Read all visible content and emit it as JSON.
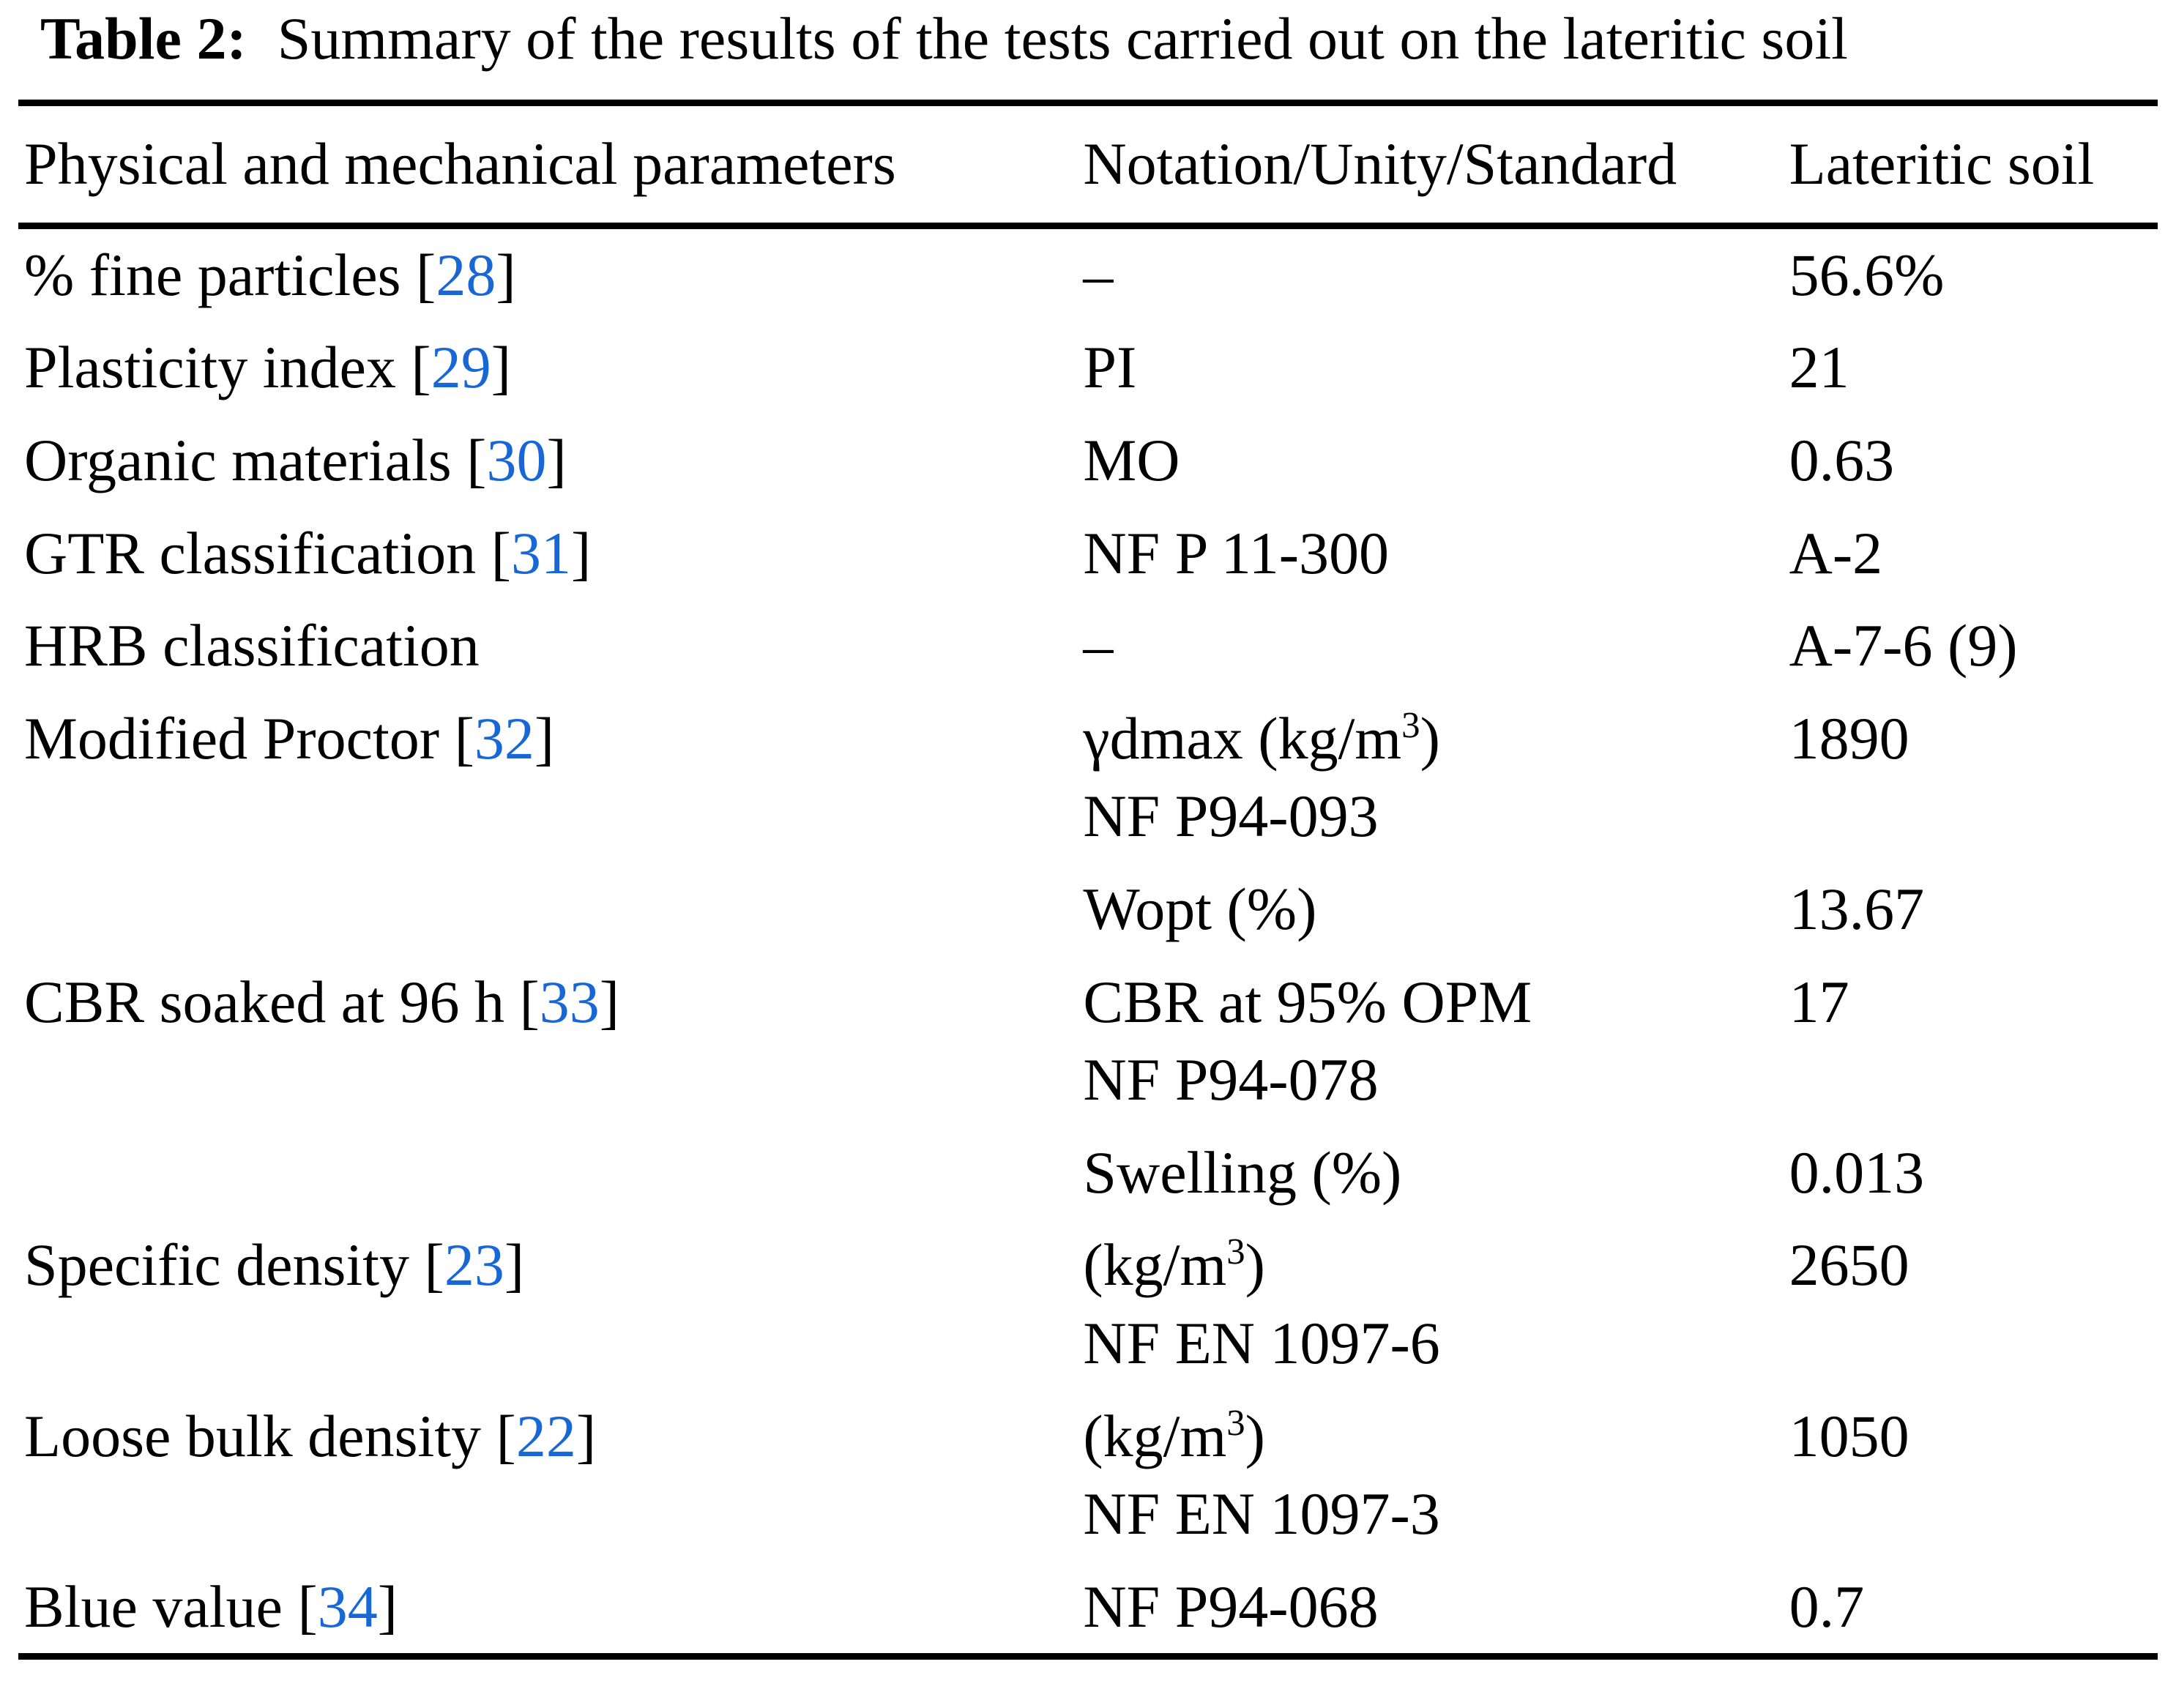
{
  "title": {
    "label": "Table 2:",
    "text": "Summary of the results of the tests carried out on the lateritic soil"
  },
  "table": {
    "columns": [
      "Physical and mechanical parameters",
      "Notation/Unity/Standard",
      "Lateritic soil"
    ],
    "rows": [
      {
        "parameter": "% fine particles",
        "ref": "28",
        "notation_lines": [
          "–"
        ],
        "value": "56.6%"
      },
      {
        "parameter": "Plasticity index",
        "ref": "29",
        "notation_lines": [
          "PI"
        ],
        "value": "21"
      },
      {
        "parameter": "Organic materials",
        "ref": "30",
        "notation_lines": [
          "MO"
        ],
        "value": "0.63"
      },
      {
        "parameter": "GTR classification",
        "ref": "31",
        "notation_lines": [
          "NF P 11-300"
        ],
        "value": "A-2"
      },
      {
        "parameter": "HRB classification",
        "ref": null,
        "notation_lines": [
          "–"
        ],
        "value": "A-7-6 (9)"
      },
      {
        "parameter": "Modified Proctor",
        "ref": "32",
        "notation_lines": [
          "γdmax (kg/m^3)",
          "NF P94-093"
        ],
        "value": "1890"
      },
      {
        "parameter": "",
        "ref": null,
        "notation_lines": [
          "Wopt (%)"
        ],
        "value": "13.67"
      },
      {
        "parameter": "CBR soaked at 96 h",
        "ref": "33",
        "notation_lines": [
          "CBR at 95% OPM",
          "NF P94-078"
        ],
        "value": "17"
      },
      {
        "parameter": "",
        "ref": null,
        "notation_lines": [
          "Swelling (%)"
        ],
        "value": "0.013"
      },
      {
        "parameter": "Specific density",
        "ref": "23",
        "notation_lines": [
          "(kg/m^3)",
          "NF EN 1097-6"
        ],
        "value": "2650"
      },
      {
        "parameter": "Loose bulk density",
        "ref": "22",
        "notation_lines": [
          "(kg/m^3)",
          "NF EN 1097-3"
        ],
        "value": "1050"
      },
      {
        "parameter": "Blue value",
        "ref": "34",
        "notation_lines": [
          "NF P94-068"
        ],
        "value": "0.7"
      }
    ]
  },
  "colors": {
    "citation_blue": "#1767D6",
    "text_black": "#000000",
    "rule_black": "#000000",
    "background_white": "#FFFFFF"
  }
}
